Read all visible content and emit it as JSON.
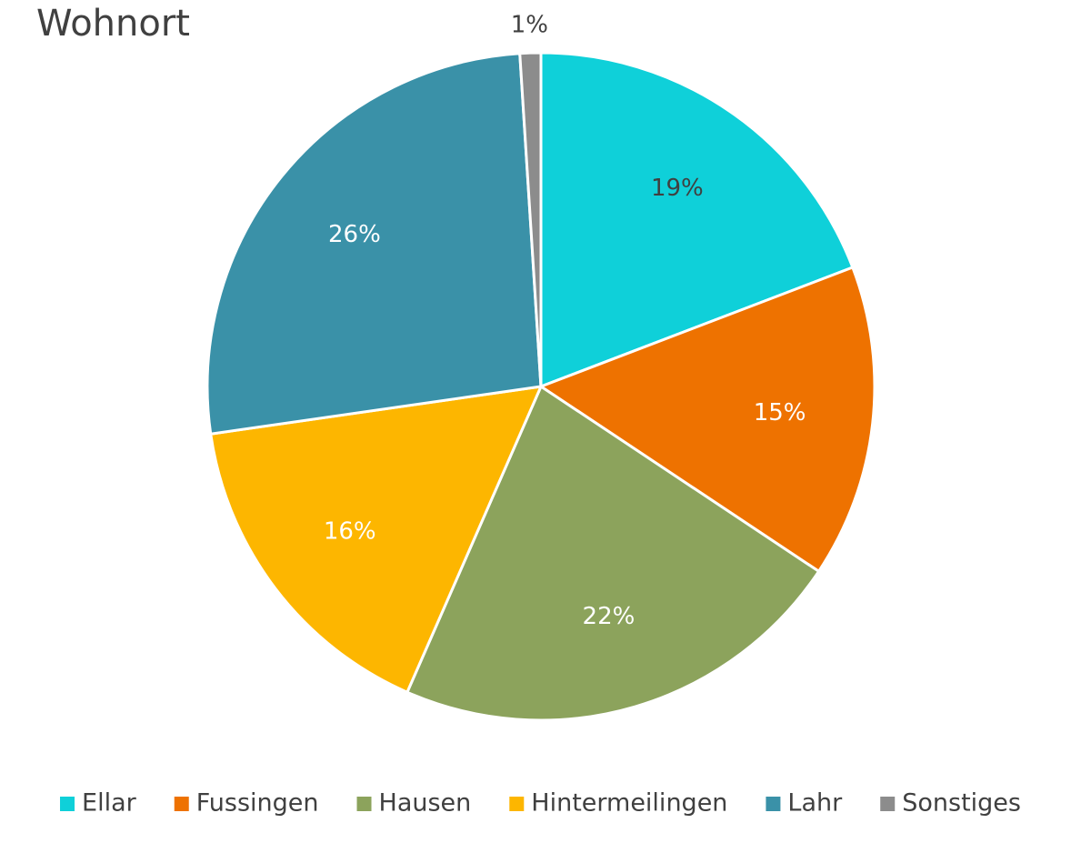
{
  "chart_data": {
    "type": "pie",
    "title": "Wohnort",
    "categories": [
      "Ellar",
      "Fussingen",
      "Hausen",
      "Hintermeilingen",
      "Lahr",
      "Sonstiges"
    ],
    "values": [
      19,
      15,
      22,
      16,
      26,
      1
    ],
    "value_labels": [
      "19%",
      "15%",
      "22%",
      "16%",
      "26%",
      "1%"
    ],
    "colors": [
      "#0fd0d9",
      "#ee7200",
      "#8ca35c",
      "#fdb600",
      "#3a91a8",
      "#8c8c8c"
    ],
    "legend": "bottom"
  }
}
